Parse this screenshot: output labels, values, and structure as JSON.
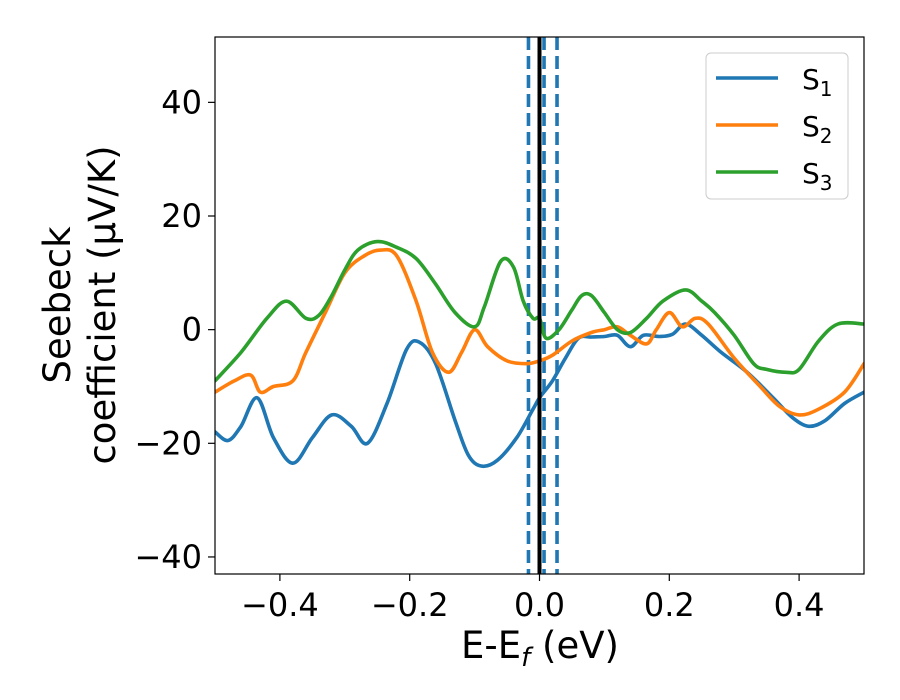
{
  "chart_data": {
    "type": "line",
    "xlabel_main": "E-E",
    "xlabel_sub": "f",
    "xlabel_tail": " (eV)",
    "ylabel_line1": "Seebeck",
    "ylabel_line2": "coefficient  (μV/K)",
    "xlim": [
      -0.5,
      0.5
    ],
    "ylim": [
      -43,
      51.5
    ],
    "xticks": [
      -0.4,
      -0.2,
      0.0,
      0.2,
      0.4
    ],
    "xtick_labels": [
      "−0.4",
      "−0.2",
      "0.0",
      "0.2",
      "0.4"
    ],
    "yticks": [
      -40,
      -20,
      0,
      20,
      40
    ],
    "ytick_labels": [
      "−40",
      "−20",
      "0",
      "20",
      "40"
    ],
    "grid": false,
    "legend_position": "top-right",
    "vlines": [
      {
        "x": 0.0,
        "style": "solid",
        "color": "#000000"
      },
      {
        "x": -0.017,
        "style": "dashed",
        "color": "#1f77b4"
      },
      {
        "x": 0.007,
        "style": "dashed",
        "color": "#1f77b4"
      },
      {
        "x": 0.027,
        "style": "dashed",
        "color": "#1f77b4"
      }
    ],
    "series": [
      {
        "name": "S",
        "sub": "1",
        "color": "#1f77b4",
        "x": [
          -0.5,
          -0.48,
          -0.46,
          -0.435,
          -0.41,
          -0.38,
          -0.35,
          -0.32,
          -0.29,
          -0.265,
          -0.235,
          -0.205,
          -0.185,
          -0.16,
          -0.13,
          -0.11,
          -0.09,
          -0.065,
          -0.035,
          -0.01,
          0.0,
          0.02,
          0.04,
          0.06,
          0.08,
          0.1,
          0.12,
          0.14,
          0.16,
          0.185,
          0.205,
          0.225,
          0.25,
          0.28,
          0.32,
          0.36,
          0.39,
          0.415,
          0.44,
          0.47,
          0.5
        ],
        "y": [
          -18,
          -19.5,
          -17,
          -12,
          -19,
          -23.5,
          -19,
          -15,
          -17,
          -20,
          -13,
          -3.5,
          -2.2,
          -6,
          -16,
          -22,
          -24,
          -23,
          -19,
          -14,
          -12,
          -9,
          -5,
          -1.5,
          -1.3,
          -1.2,
          -1,
          -3,
          -1,
          -1.2,
          -0.8,
          1,
          -1,
          -4,
          -7.5,
          -12,
          -15.5,
          -17,
          -16,
          -13,
          -11
        ]
      },
      {
        "name": "S",
        "sub": "2",
        "color": "#ff7f0e",
        "x": [
          -0.5,
          -0.47,
          -0.445,
          -0.43,
          -0.41,
          -0.38,
          -0.36,
          -0.33,
          -0.3,
          -0.27,
          -0.245,
          -0.22,
          -0.19,
          -0.165,
          -0.14,
          -0.12,
          -0.1,
          -0.08,
          -0.05,
          -0.02,
          0.0,
          0.02,
          0.05,
          0.08,
          0.1,
          0.12,
          0.14,
          0.165,
          0.18,
          0.2,
          0.22,
          0.24,
          0.26,
          0.3,
          0.34,
          0.37,
          0.4,
          0.43,
          0.47,
          0.5
        ],
        "y": [
          -11,
          -9,
          -8,
          -11,
          -10,
          -9,
          -4,
          3,
          10,
          13,
          14,
          13,
          5,
          -4,
          -7.5,
          -4,
          0,
          -3,
          -5.5,
          -6,
          -5.5,
          -4.5,
          -2,
          -0.5,
          0,
          0.5,
          -1,
          -2.5,
          0,
          3,
          0.5,
          2,
          1,
          -5,
          -10,
          -13.5,
          -15,
          -14,
          -11,
          -6
        ]
      },
      {
        "name": "S",
        "sub": "3",
        "color": "#2ca02c",
        "x": [
          -0.5,
          -0.46,
          -0.42,
          -0.39,
          -0.36,
          -0.34,
          -0.32,
          -0.3,
          -0.28,
          -0.25,
          -0.22,
          -0.19,
          -0.16,
          -0.13,
          -0.1,
          -0.085,
          -0.06,
          -0.04,
          -0.025,
          -0.01,
          0.0,
          0.01,
          0.03,
          0.05,
          0.065,
          0.08,
          0.1,
          0.12,
          0.14,
          0.165,
          0.19,
          0.225,
          0.25,
          0.27,
          0.3,
          0.33,
          0.35,
          0.38,
          0.4,
          0.43,
          0.46,
          0.5
        ],
        "y": [
          -9,
          -4,
          2,
          5,
          2,
          2.5,
          6,
          10.5,
          14,
          15.5,
          14.5,
          12.5,
          8,
          3,
          0.5,
          4,
          12,
          11,
          5,
          2,
          2,
          -1.5,
          0,
          3.5,
          6,
          6,
          3,
          0,
          -0.5,
          2,
          5,
          7,
          5,
          3,
          -1,
          -6,
          -7,
          -7.5,
          -7,
          -2,
          1,
          1
        ]
      }
    ]
  }
}
